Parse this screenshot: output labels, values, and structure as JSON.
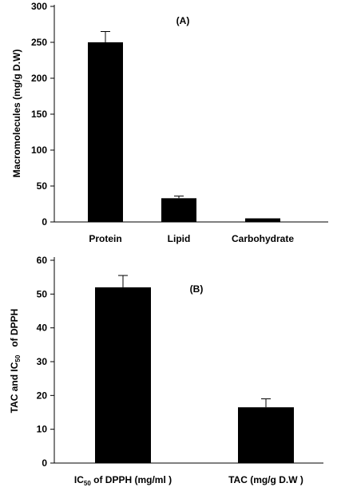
{
  "chart_data": [
    {
      "type": "bar",
      "panel_label": "(A)",
      "categories": [
        "Protein",
        "Lipid",
        "Carbohydrate"
      ],
      "values": [
        250,
        33,
        5
      ],
      "errors": [
        15,
        3,
        0
      ],
      "ylabel": "Macromolecules (mg/g D.W)",
      "ylim": [
        0,
        300
      ],
      "yticks": [
        "0",
        "50",
        "100",
        "150",
        "200",
        "250",
        "300"
      ],
      "grid": false,
      "bar_color": "#000000"
    },
    {
      "type": "bar",
      "panel_label": "(B)",
      "categories": [
        {
          "main": "IC",
          "sub": "50",
          "rest": " of DPPH (mg/ml )"
        },
        {
          "main": "TAC (mg/g D.W )",
          "sub": "",
          "rest": ""
        }
      ],
      "values": [
        52,
        16.5
      ],
      "errors": [
        3.5,
        2.5
      ],
      "ylabel": {
        "pre": "TAC and IC",
        "sub": "50",
        "post": "   of DPPH"
      },
      "ylim": [
        0,
        60
      ],
      "yticks": [
        "0",
        "10",
        "20",
        "30",
        "40",
        "50",
        "60"
      ],
      "grid": false,
      "bar_color": "#000000"
    }
  ]
}
